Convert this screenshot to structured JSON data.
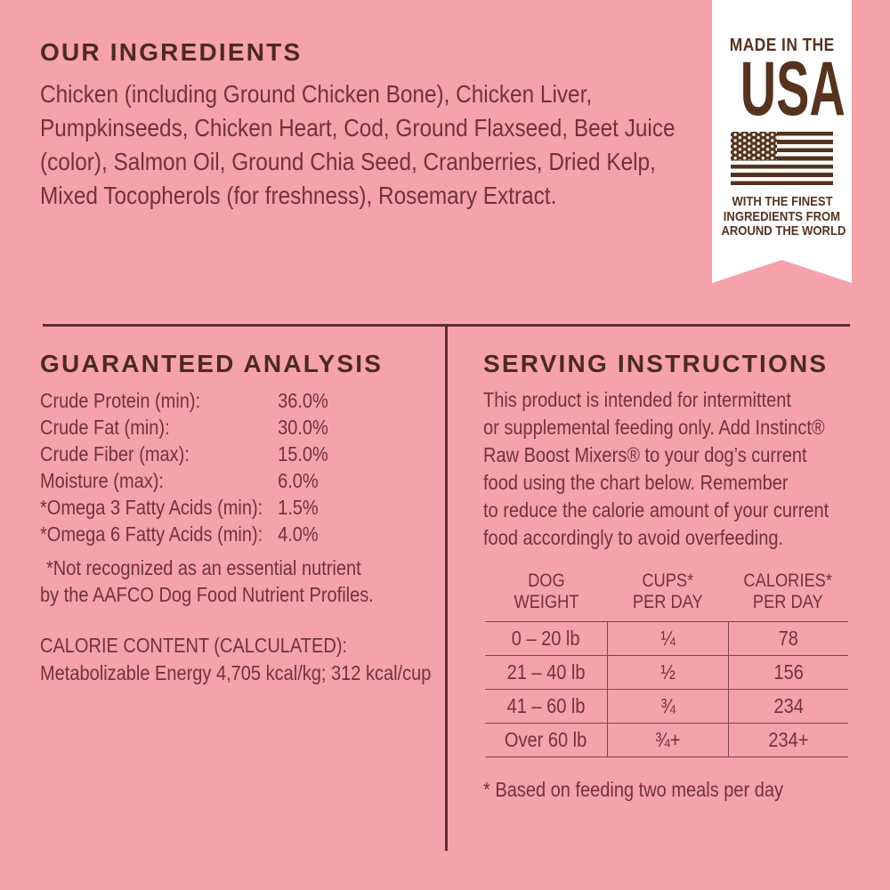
{
  "colors": {
    "background_pink": "#F6A2AB",
    "heading_brown": "#4D2A21",
    "body_maroon": "#6F333B",
    "rule_maroon": "#5E2D31",
    "badge_brown": "#55331E",
    "badge_background": "#FFFFFF"
  },
  "ingredients": {
    "heading": "OUR INGREDIENTS",
    "lines": [
      "Chicken (including Ground Chicken Bone), Chicken Liver,",
      "Pumpkinseeds, Chicken Heart, Cod, Ground Flaxseed, Beet Juice",
      "(color), Salmon Oil, Ground Chia Seed, Cranberries, Dried Kelp,",
      "Mixed Tocopherols (for freshness), Rosemary Extract."
    ]
  },
  "made_in_usa": {
    "line1": "MADE IN THE",
    "line2": "USA",
    "flag_icon": "us-flag-icon",
    "tagline_lines": [
      "WITH THE FINEST",
      "INGREDIENTS FROM",
      "AROUND THE WORLD"
    ]
  },
  "analysis": {
    "heading": "GUARANTEED ANALYSIS",
    "rows": [
      {
        "label": "Crude Protein (min):",
        "value": "36.0%"
      },
      {
        "label": "Crude Fat (min):",
        "value": "30.0%"
      },
      {
        "label": "Crude Fiber (max):",
        "value": "15.0%"
      },
      {
        "label": "Moisture (max):",
        "value": "6.0%"
      },
      {
        "label": "*Omega 3 Fatty Acids (min):",
        "value": "1.5%"
      },
      {
        "label": "*Omega 6 Fatty Acids (min):",
        "value": "4.0%"
      }
    ],
    "footnote_lines": [
      "*Not recognized as an essential nutrient",
      "by the AAFCO Dog Food Nutrient Profiles."
    ],
    "calorie_heading": "CALORIE CONTENT (CALCULATED):",
    "calorie_line": "Metabolizable Energy 4,705 kcal/kg; 312 kcal/cup"
  },
  "serving": {
    "heading": "SERVING INSTRUCTIONS",
    "paragraph_lines": [
      "This product is intended for intermittent",
      "or supplemental feeding only. Add Instinct®",
      "Raw Boost Mixers® to your dog’s current",
      "food using the chart below. Remember",
      "to reduce the calorie amount of your current",
      "food accordingly to avoid overfeeding."
    ],
    "table": {
      "headers": [
        {
          "line1": "DOG",
          "line2": "WEIGHT"
        },
        {
          "line1": "CUPS*",
          "line2": "PER DAY"
        },
        {
          "line1": "CALORIES*",
          "line2": "PER DAY"
        }
      ],
      "rows": [
        {
          "weight": "0 – 20 lb",
          "cups": "¼",
          "calories": "78"
        },
        {
          "weight": "21 – 40 lb",
          "cups": "½",
          "calories": "156"
        },
        {
          "weight": "41 – 60 lb",
          "cups": "¾",
          "calories": "234"
        },
        {
          "weight": "Over 60 lb",
          "cups": "¾+",
          "calories": "234+"
        }
      ],
      "footnote": "* Based on feeding two meals per day"
    }
  }
}
